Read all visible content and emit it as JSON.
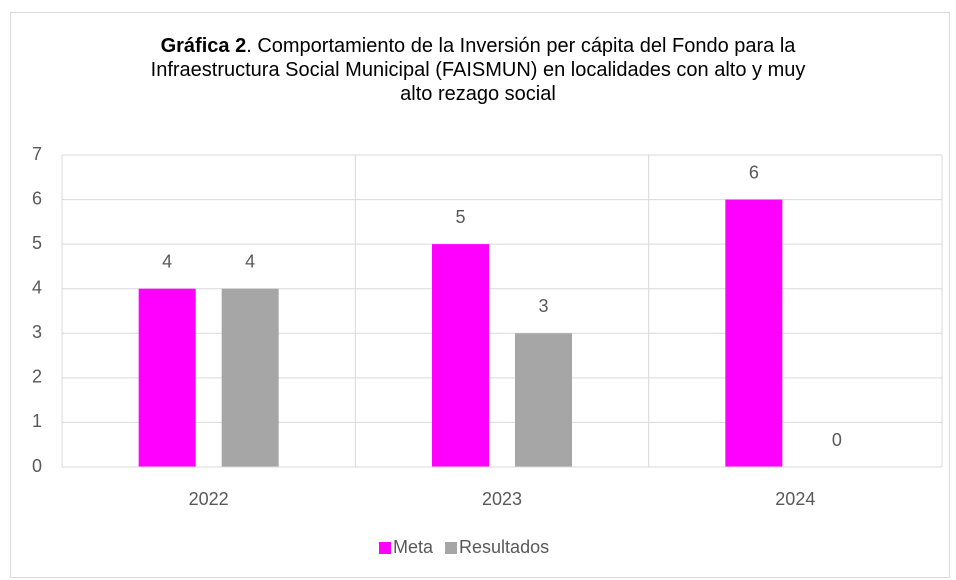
{
  "chart_data": {
    "type": "bar",
    "title_bold": "Gráfica 2",
    "title": ". Comportamiento de la Inversión per cápita del Fondo para la Infraestructura Social Municipal (FAISMUN) en localidades con alto y muy alto rezago social",
    "categories": [
      "2022",
      "2023",
      "2024"
    ],
    "series": [
      {
        "name": "Meta",
        "color": "#ff00ff",
        "values": [
          4,
          5,
          6
        ]
      },
      {
        "name": "Resultados",
        "color": "#a6a6a6",
        "values": [
          4,
          3,
          0
        ]
      }
    ],
    "ylim": [
      0,
      7
    ],
    "yticks": [
      0,
      1,
      2,
      3,
      4,
      5,
      6,
      7
    ],
    "grid": true,
    "legend": "bottom"
  }
}
